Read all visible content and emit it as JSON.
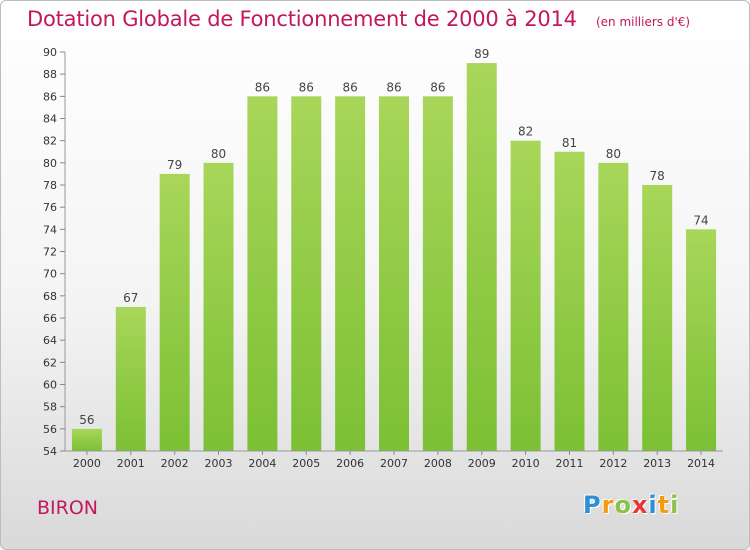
{
  "chart_data": {
    "type": "bar",
    "title": "Dotation Globale de Fonctionnement de 2000 à 2014",
    "subtitle": "(en milliers d'€)",
    "categories": [
      "2000",
      "2001",
      "2002",
      "2003",
      "2004",
      "2005",
      "2006",
      "2007",
      "2008",
      "2009",
      "2010",
      "2011",
      "2012",
      "2013",
      "2014"
    ],
    "values": [
      56,
      67,
      79,
      80,
      86,
      86,
      86,
      86,
      86,
      89,
      82,
      81,
      80,
      78,
      74
    ],
    "ylim": [
      54,
      90
    ],
    "yticks": [
      54,
      56,
      58,
      60,
      62,
      64,
      66,
      68,
      70,
      72,
      74,
      76,
      78,
      80,
      82,
      84,
      86,
      88,
      90
    ],
    "grid": false,
    "data_labels": true,
    "bar_color": "#7cc034",
    "bar_color_top": "#a8d65a",
    "text_color": "#c2185b"
  },
  "footer": {
    "commune": "BIRON",
    "logo_letters": [
      {
        "ch": "P",
        "color": "#2e8fd6"
      },
      {
        "ch": "r",
        "color": "#f39c12"
      },
      {
        "ch": "o",
        "color": "#8bc34a"
      },
      {
        "ch": "x",
        "color": "#e53935"
      },
      {
        "ch": "i",
        "color": "#2e8fd6"
      },
      {
        "ch": "t",
        "color": "#f39c12"
      },
      {
        "ch": "i",
        "color": "#8bc34a"
      }
    ]
  }
}
